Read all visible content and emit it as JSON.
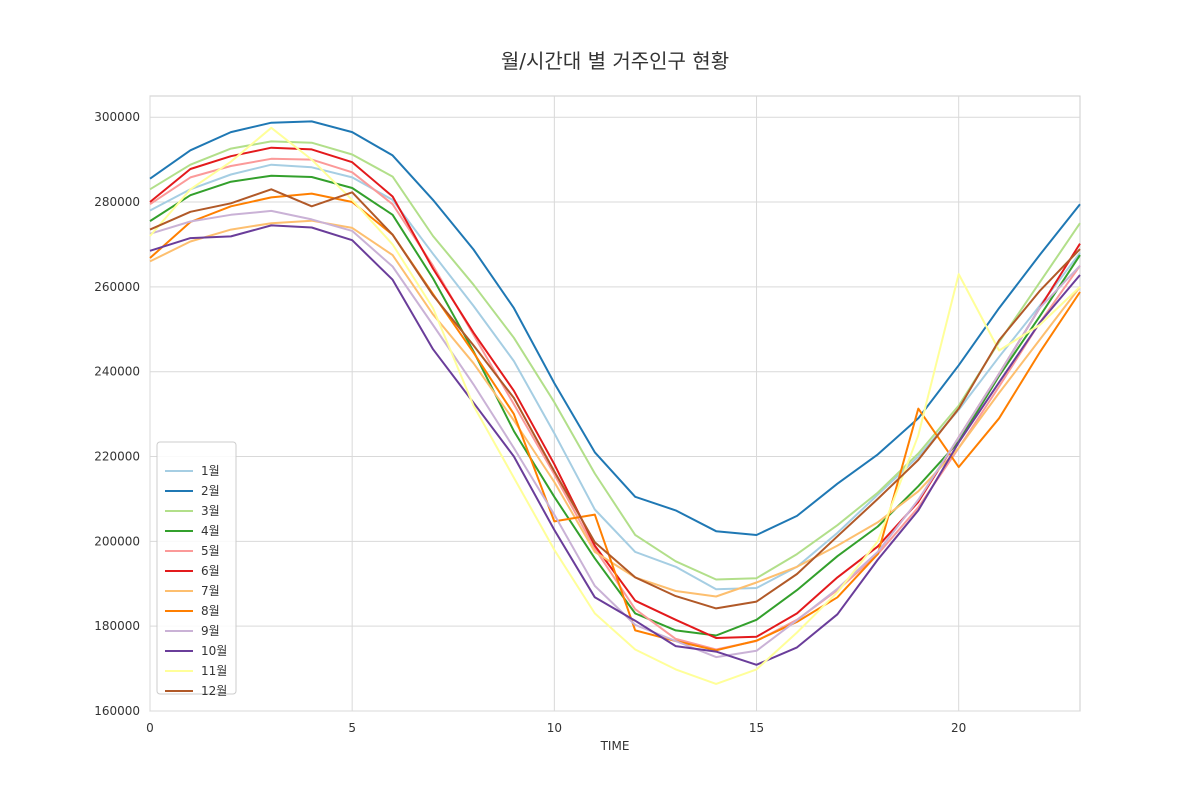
{
  "chart_data": {
    "type": "line",
    "title": "월/시간대 별 거주인구 현황",
    "xlabel": "TIME",
    "ylabel": "",
    "xlim": [
      0,
      23
    ],
    "ylim": [
      160000,
      305000
    ],
    "xticks": [
      0,
      5,
      10,
      15,
      20
    ],
    "yticks": [
      160000,
      180000,
      200000,
      220000,
      240000,
      260000,
      280000,
      300000
    ],
    "xtick_labels": [
      "0",
      "5",
      "10",
      "15",
      "20"
    ],
    "ytick_labels": [
      "160000",
      "180000",
      "200000",
      "220000",
      "240000",
      "260000",
      "280000",
      "300000"
    ],
    "grid": true,
    "legend_position": "lower-left",
    "x": [
      0,
      1,
      2,
      3,
      4,
      5,
      6,
      7,
      8,
      9,
      10,
      11,
      12,
      13,
      14,
      15,
      16,
      17,
      18,
      19,
      20,
      21,
      22,
      23
    ],
    "series": [
      {
        "name": "1월",
        "color": "#a6cee3",
        "values": [
          278000,
          283000,
          286500,
          288800,
          288200,
          285800,
          280500,
          267800,
          255500,
          242500,
          225500,
          207500,
          197500,
          194000,
          188700,
          189000,
          194000,
          202000,
          211000,
          220000,
          231000,
          243500,
          255500,
          268000
        ]
      },
      {
        "name": "2월",
        "color": "#1f78b4",
        "values": [
          285500,
          292200,
          296500,
          298700,
          299000,
          296500,
          291000,
          280500,
          268800,
          255000,
          237300,
          221000,
          210500,
          207300,
          202400,
          201500,
          206000,
          213600,
          220500,
          229000,
          241500,
          255000,
          267500,
          279500
        ]
      },
      {
        "name": "3월",
        "color": "#b2df8a",
        "values": [
          283000,
          288800,
          292600,
          294300,
          294000,
          291200,
          286000,
          272000,
          260500,
          248000,
          232800,
          216000,
          201500,
          195300,
          191000,
          191300,
          197000,
          203800,
          211500,
          220700,
          232000,
          247000,
          261000,
          275000
        ]
      },
      {
        "name": "4월",
        "color": "#33a02c",
        "values": [
          275500,
          281600,
          284800,
          286200,
          285900,
          283300,
          277000,
          262000,
          244800,
          226000,
          210500,
          196000,
          183000,
          179000,
          177800,
          181500,
          188500,
          196500,
          203500,
          213000,
          223500,
          239000,
          253000,
          267500
        ]
      },
      {
        "name": "5월",
        "color": "#fb9a99",
        "values": [
          279500,
          285800,
          288500,
          290200,
          290000,
          287000,
          279500,
          265000,
          248700,
          232300,
          215800,
          198300,
          184000,
          177000,
          174500,
          176500,
          181500,
          188500,
          197000,
          208000,
          222000,
          236500,
          251500,
          265000
        ]
      },
      {
        "name": "6월",
        "color": "#e31a1c",
        "values": [
          280000,
          287800,
          290800,
          292800,
          292400,
          289400,
          281300,
          264300,
          249200,
          235500,
          218200,
          199000,
          186000,
          181500,
          177200,
          177500,
          183000,
          191500,
          198800,
          209300,
          224500,
          239500,
          255000,
          270200
        ]
      },
      {
        "name": "7월",
        "color": "#fdbf6f",
        "values": [
          266000,
          270700,
          273500,
          275000,
          275600,
          273900,
          267500,
          253500,
          242000,
          228500,
          214000,
          197500,
          191500,
          188300,
          187000,
          190300,
          194000,
          199000,
          204500,
          211800,
          222000,
          235000,
          247500,
          260000
        ]
      },
      {
        "name": "8월",
        "color": "#ff7f00",
        "values": [
          266800,
          275300,
          279000,
          281100,
          282000,
          280000,
          272300,
          258300,
          244500,
          230000,
          204700,
          206300,
          179000,
          176500,
          174300,
          176600,
          181000,
          186800,
          197000,
          231300,
          217500,
          229000,
          244500,
          258800
        ]
      },
      {
        "name": "9월",
        "color": "#cab2d6",
        "values": [
          272500,
          275400,
          277000,
          277900,
          275900,
          273200,
          264800,
          251000,
          237000,
          222000,
          206300,
          189500,
          180300,
          176500,
          172700,
          174200,
          181400,
          188800,
          197500,
          209800,
          224500,
          239500,
          255000,
          265000
        ]
      },
      {
        "name": "10월",
        "color": "#6a3d9a",
        "values": [
          268500,
          271500,
          271900,
          274500,
          274000,
          271000,
          261700,
          245300,
          232700,
          220000,
          202700,
          186800,
          181300,
          175300,
          174000,
          170900,
          175000,
          182800,
          195700,
          207300,
          223300,
          237500,
          251500,
          262800
        ]
      },
      {
        "name": "11월",
        "color": "#ffff99",
        "values": [
          272000,
          283000,
          289500,
          297500,
          290000,
          280500,
          270000,
          255000,
          232000,
          215000,
          198000,
          183000,
          174500,
          169800,
          166400,
          169800,
          178500,
          188000,
          200000,
          225000,
          263000,
          245000,
          251000,
          260000
        ]
      },
      {
        "name": "12월",
        "color": "#b15928",
        "values": [
          273500,
          277700,
          279700,
          283000,
          279000,
          282300,
          272300,
          258000,
          246200,
          233800,
          216500,
          199800,
          191500,
          187100,
          184200,
          185800,
          192300,
          201200,
          210000,
          219200,
          231300,
          247400,
          259000,
          268900
        ]
      }
    ]
  }
}
